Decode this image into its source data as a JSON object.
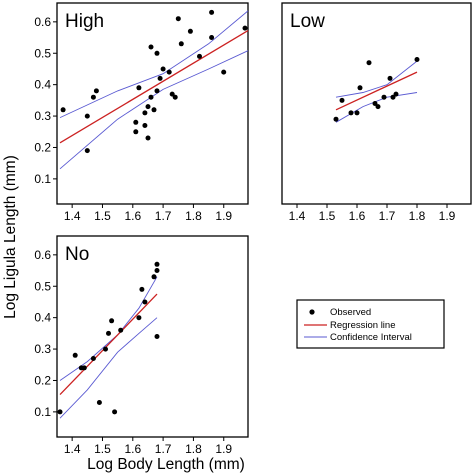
{
  "chart_data": [
    {
      "type": "scatter",
      "panel_label": "High",
      "xlim": [
        1.35,
        1.98
      ],
      "ylim": [
        0.02,
        0.66
      ],
      "x_ticks": [
        "1.4",
        "1.5",
        "1.6",
        "1.7",
        "1.8",
        "1.9"
      ],
      "y_ticks": [
        "0.1",
        "0.2",
        "0.3",
        "0.4",
        "0.5",
        "0.6"
      ],
      "points": [
        {
          "x": 1.37,
          "y": 0.32
        },
        {
          "x": 1.45,
          "y": 0.3
        },
        {
          "x": 1.45,
          "y": 0.19
        },
        {
          "x": 1.47,
          "y": 0.36
        },
        {
          "x": 1.48,
          "y": 0.38
        },
        {
          "x": 1.61,
          "y": 0.25
        },
        {
          "x": 1.61,
          "y": 0.28
        },
        {
          "x": 1.62,
          "y": 0.39
        },
        {
          "x": 1.64,
          "y": 0.31
        },
        {
          "x": 1.64,
          "y": 0.27
        },
        {
          "x": 1.65,
          "y": 0.33
        },
        {
          "x": 1.65,
          "y": 0.23
        },
        {
          "x": 1.66,
          "y": 0.36
        },
        {
          "x": 1.66,
          "y": 0.52
        },
        {
          "x": 1.67,
          "y": 0.32
        },
        {
          "x": 1.68,
          "y": 0.38
        },
        {
          "x": 1.68,
          "y": 0.5
        },
        {
          "x": 1.69,
          "y": 0.42
        },
        {
          "x": 1.7,
          "y": 0.45
        },
        {
          "x": 1.72,
          "y": 0.44
        },
        {
          "x": 1.73,
          "y": 0.37
        },
        {
          "x": 1.74,
          "y": 0.36
        },
        {
          "x": 1.75,
          "y": 0.61
        },
        {
          "x": 1.76,
          "y": 0.53
        },
        {
          "x": 1.79,
          "y": 0.57
        },
        {
          "x": 1.82,
          "y": 0.49
        },
        {
          "x": 1.86,
          "y": 0.63
        },
        {
          "x": 1.86,
          "y": 0.55
        },
        {
          "x": 1.9,
          "y": 0.44
        },
        {
          "x": 1.97,
          "y": 0.58
        }
      ],
      "regression": [
        [
          1.36,
          0.215
        ],
        [
          1.98,
          0.572
        ]
      ],
      "ci_upper": [
        [
          1.36,
          0.295
        ],
        [
          1.55,
          0.38
        ],
        [
          1.7,
          0.435
        ],
        [
          1.85,
          0.53
        ],
        [
          1.98,
          0.635
        ]
      ],
      "ci_lower": [
        [
          1.36,
          0.132
        ],
        [
          1.55,
          0.29
        ],
        [
          1.7,
          0.385
        ],
        [
          1.85,
          0.45
        ],
        [
          1.98,
          0.508
        ]
      ]
    },
    {
      "type": "scatter",
      "panel_label": "Low",
      "xlim": [
        1.35,
        1.98
      ],
      "ylim": [
        0.02,
        0.66
      ],
      "x_ticks": [
        "1.4",
        "1.5",
        "1.6",
        "1.7",
        "1.8",
        "1.9"
      ],
      "y_ticks": [],
      "points": [
        {
          "x": 1.53,
          "y": 0.29
        },
        {
          "x": 1.55,
          "y": 0.35
        },
        {
          "x": 1.58,
          "y": 0.31
        },
        {
          "x": 1.6,
          "y": 0.31
        },
        {
          "x": 1.61,
          "y": 0.39
        },
        {
          "x": 1.64,
          "y": 0.47
        },
        {
          "x": 1.66,
          "y": 0.34
        },
        {
          "x": 1.67,
          "y": 0.33
        },
        {
          "x": 1.69,
          "y": 0.36
        },
        {
          "x": 1.71,
          "y": 0.42
        },
        {
          "x": 1.72,
          "y": 0.36
        },
        {
          "x": 1.73,
          "y": 0.37
        },
        {
          "x": 1.8,
          "y": 0.48
        }
      ],
      "regression": [
        [
          1.53,
          0.32
        ],
        [
          1.8,
          0.44
        ]
      ],
      "ci_upper": [
        [
          1.53,
          0.36
        ],
        [
          1.62,
          0.375
        ],
        [
          1.7,
          0.4
        ],
        [
          1.8,
          0.475
        ]
      ],
      "ci_lower": [
        [
          1.53,
          0.28
        ],
        [
          1.62,
          0.33
        ],
        [
          1.7,
          0.36
        ],
        [
          1.8,
          0.375
        ]
      ]
    },
    {
      "type": "scatter",
      "panel_label": "No",
      "xlim": [
        1.35,
        1.98
      ],
      "ylim": [
        0.02,
        0.66
      ],
      "x_ticks": [
        "1.4",
        "1.5",
        "1.6",
        "1.7",
        "1.8",
        "1.9"
      ],
      "y_ticks": [
        "0.1",
        "0.2",
        "0.3",
        "0.4",
        "0.5",
        "0.6"
      ],
      "points": [
        {
          "x": 1.36,
          "y": 0.1
        },
        {
          "x": 1.41,
          "y": 0.28
        },
        {
          "x": 1.43,
          "y": 0.24
        },
        {
          "x": 1.44,
          "y": 0.24
        },
        {
          "x": 1.47,
          "y": 0.27
        },
        {
          "x": 1.49,
          "y": 0.13
        },
        {
          "x": 1.51,
          "y": 0.3
        },
        {
          "x": 1.52,
          "y": 0.35
        },
        {
          "x": 1.53,
          "y": 0.39
        },
        {
          "x": 1.54,
          "y": 0.1
        },
        {
          "x": 1.56,
          "y": 0.36
        },
        {
          "x": 1.62,
          "y": 0.4
        },
        {
          "x": 1.63,
          "y": 0.49
        },
        {
          "x": 1.64,
          "y": 0.45
        },
        {
          "x": 1.67,
          "y": 0.53
        },
        {
          "x": 1.68,
          "y": 0.57
        },
        {
          "x": 1.68,
          "y": 0.34
        },
        {
          "x": 1.68,
          "y": 0.55
        }
      ],
      "regression": [
        [
          1.36,
          0.155
        ],
        [
          1.68,
          0.475
        ]
      ],
      "ci_upper": [
        [
          1.36,
          0.2
        ],
        [
          1.45,
          0.26
        ],
        [
          1.55,
          0.345
        ],
        [
          1.62,
          0.43
        ],
        [
          1.68,
          0.53
        ]
      ],
      "ci_lower": [
        [
          1.36,
          0.08
        ],
        [
          1.45,
          0.17
        ],
        [
          1.55,
          0.29
        ],
        [
          1.62,
          0.35
        ],
        [
          1.68,
          0.4
        ]
      ]
    }
  ],
  "axis_labels": {
    "x": "Log Body Length (mm)",
    "y": "Log Ligula Length (mm)"
  },
  "legend": {
    "placement": "bottom-right",
    "observed": "Observed",
    "regression": "Regression line",
    "ci": "Confidence Interval"
  },
  "colors": {
    "regression": "#cc2222",
    "ci": "#5a5ad2",
    "points": "#000000",
    "frame": "#000000"
  }
}
